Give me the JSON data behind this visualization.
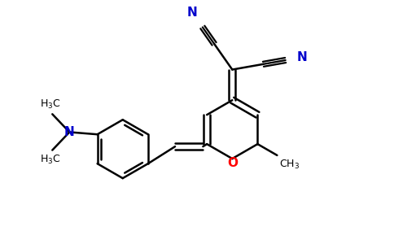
{
  "bg_color": "#ffffff",
  "bond_color": "#000000",
  "N_color": "#0000cc",
  "O_color": "#ff0000",
  "line_width": 1.8,
  "figsize": [
    4.84,
    3.0
  ],
  "dpi": 100,
  "xlim": [
    -5.5,
    3.2
  ],
  "ylim": [
    -2.2,
    2.5
  ]
}
